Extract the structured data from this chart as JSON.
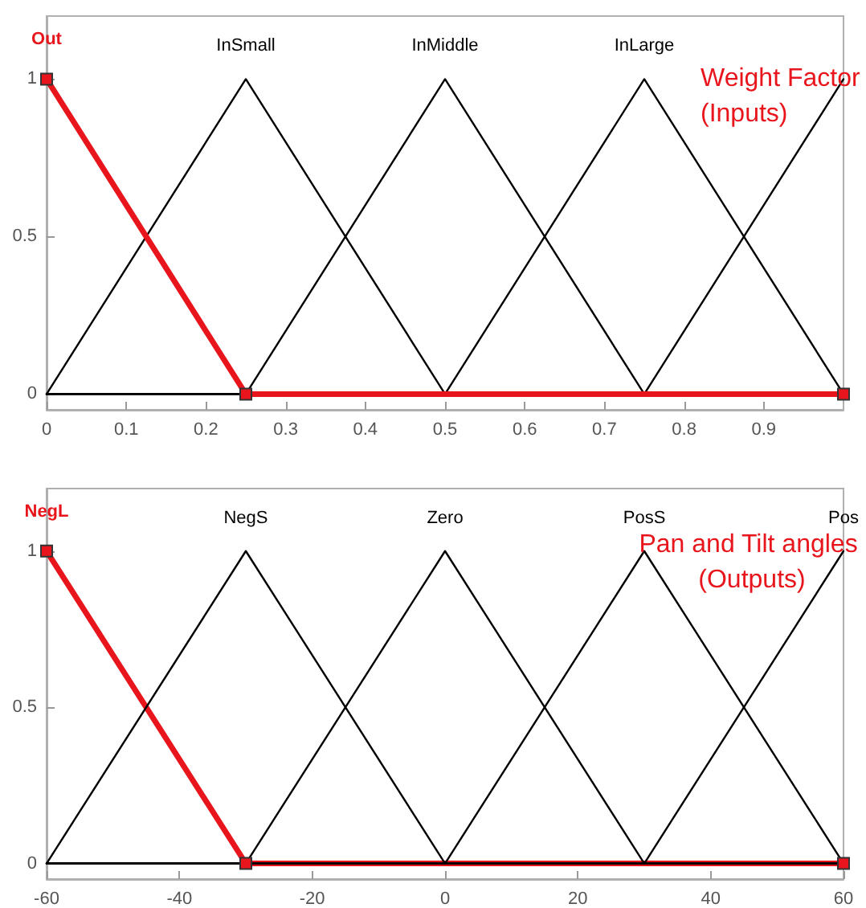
{
  "chart_data": [
    {
      "type": "line",
      "annotations": [
        "Weight Factor (Inputs)"
      ],
      "xlim": [
        0,
        1
      ],
      "xticks": [
        0,
        0.1,
        0.2,
        0.3,
        0.4,
        0.5,
        0.6,
        0.7,
        0.8,
        0.9
      ],
      "ylim": [
        -0.05,
        1.2
      ],
      "yticks": [
        0,
        0.5,
        1
      ],
      "line_style": "solid",
      "series": [
        {
          "name": "InSmall",
          "color": "#000000",
          "x": [
            0,
            0.25,
            0.5,
            1
          ],
          "values": [
            0,
            1,
            0,
            0
          ]
        },
        {
          "name": "InMiddle",
          "color": "#000000",
          "x": [
            0,
            0.25,
            0.5,
            0.75,
            1
          ],
          "values": [
            0,
            0,
            1,
            0,
            0
          ]
        },
        {
          "name": "InLarge",
          "color": "#000000",
          "x": [
            0,
            0.5,
            0.75,
            1
          ],
          "values": [
            0,
            0,
            1,
            0
          ]
        },
        {
          "color": "#000000",
          "x": [
            0,
            0.75,
            1
          ],
          "values": [
            0,
            0,
            1
          ]
        },
        {
          "name": "Out",
          "color": "#e8161c",
          "x": [
            0,
            0.25,
            1
          ],
          "values": [
            1,
            0,
            0
          ],
          "marker": "square"
        }
      ]
    },
    {
      "type": "line",
      "annotations": [
        "Pan and Tilt angles (Outputs)"
      ],
      "xlim": [
        -60,
        60
      ],
      "xticks": [
        -60,
        -40,
        -20,
        0,
        20,
        40,
        60
      ],
      "ylim": [
        -0.05,
        1.2
      ],
      "yticks": [
        0,
        0.5,
        1
      ],
      "line_style": "solid",
      "series": [
        {
          "name": "NegL",
          "color": "#e8161c",
          "x": [
            -60,
            -30,
            60
          ],
          "values": [
            1,
            0,
            0
          ],
          "marker": "square"
        },
        {
          "name": "NegS",
          "color": "#000000",
          "x": [
            -60,
            -30,
            0,
            60
          ],
          "values": [
            0,
            1,
            0,
            0
          ]
        },
        {
          "name": "Zero",
          "color": "#000000",
          "x": [
            -60,
            -30,
            0,
            30,
            60
          ],
          "values": [
            0,
            0,
            1,
            0,
            0
          ]
        },
        {
          "name": "PosS",
          "color": "#000000",
          "x": [
            -60,
            0,
            30,
            60
          ],
          "values": [
            0,
            0,
            1,
            0
          ]
        },
        {
          "name": "Pos",
          "color": "#000000",
          "x": [
            -60,
            30,
            60
          ],
          "values": [
            0,
            0,
            1
          ]
        }
      ]
    }
  ]
}
